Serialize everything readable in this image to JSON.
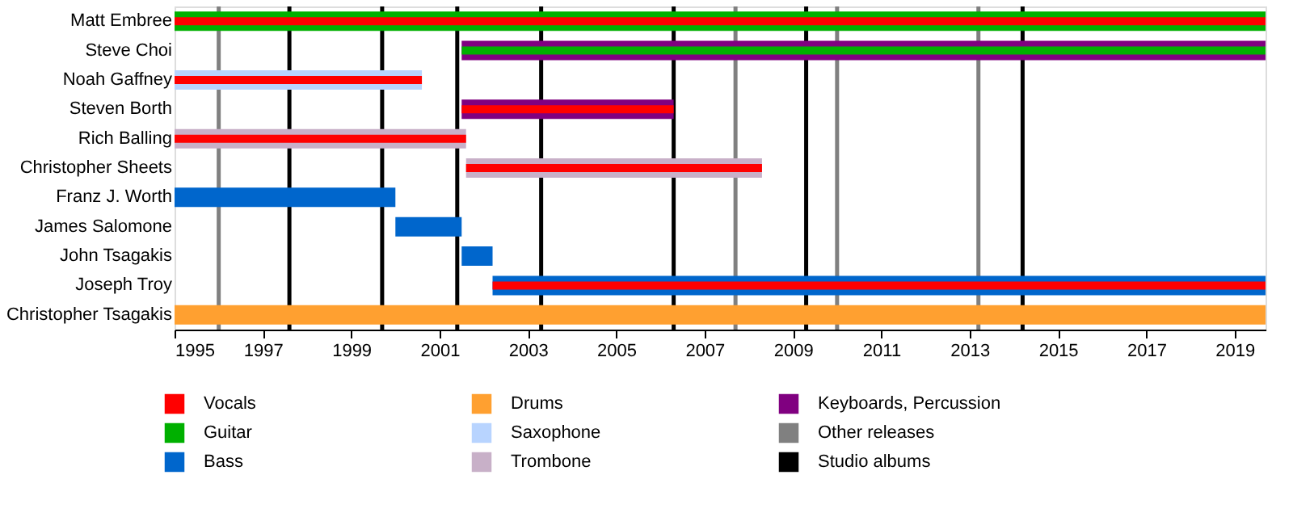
{
  "chart_data": {
    "type": "bar",
    "orientation": "horizontal",
    "categories": [
      "Matt Embree",
      "Steve Choi",
      "Noah Gaffney",
      "Steven Borth",
      "Rich Balling",
      "Christopher Sheets",
      "Franz J. Worth",
      "James Salomone",
      "John Tsagakis",
      "Joseph Troy",
      "Christopher Tsagakis"
    ],
    "series": [
      {
        "name": "Vocals",
        "color": "#ff0000",
        "base": [
          1995,
          null,
          1995,
          2001.5,
          1995,
          2001.6,
          null,
          null,
          null,
          2002.2,
          null
        ],
        "values": [
          24.7,
          null,
          5.6,
          4.8,
          6.6,
          6.7,
          null,
          null,
          null,
          17.5,
          null
        ]
      },
      {
        "name": "Guitar",
        "color": "#00b000",
        "base": [
          1995,
          2001.5,
          null,
          null,
          null,
          null,
          null,
          null,
          null,
          null,
          null
        ],
        "values": [
          24.7,
          18.2,
          null,
          null,
          null,
          null,
          null,
          null,
          null,
          null,
          null
        ]
      },
      {
        "name": "Bass",
        "color": "#0066cc",
        "base": [
          null,
          null,
          null,
          null,
          null,
          null,
          1995,
          2000.0,
          2001.5,
          2002.2,
          null
        ],
        "values": [
          null,
          null,
          null,
          null,
          null,
          null,
          5.0,
          1.5,
          0.7,
          17.5,
          null
        ]
      },
      {
        "name": "Drums",
        "color": "#ffa030",
        "base": [
          null,
          null,
          null,
          null,
          null,
          null,
          null,
          null,
          null,
          null,
          1995
        ],
        "values": [
          null,
          null,
          null,
          null,
          null,
          null,
          null,
          null,
          null,
          null,
          24.7
        ]
      },
      {
        "name": "Saxophone",
        "color": "#b8d4ff",
        "base": [
          null,
          null,
          1995,
          null,
          null,
          null,
          null,
          null,
          null,
          null,
          null
        ],
        "values": [
          null,
          null,
          5.6,
          null,
          null,
          null,
          null,
          null,
          null,
          null,
          null
        ]
      },
      {
        "name": "Trombone",
        "color": "#c8b0c8",
        "base": [
          null,
          null,
          null,
          null,
          1995,
          2001.6,
          null,
          null,
          null,
          null,
          null
        ],
        "values": [
          null,
          null,
          null,
          null,
          6.6,
          6.7,
          null,
          null,
          null,
          null,
          null
        ]
      },
      {
        "name": "Keyboards, Percussion",
        "color": "#800080",
        "base": [
          null,
          2001.5,
          null,
          2001.5,
          null,
          null,
          null,
          null,
          null,
          null,
          null
        ],
        "values": [
          null,
          18.2,
          null,
          4.8,
          null,
          null,
          null,
          null,
          null,
          null,
          null
        ]
      }
    ],
    "ref_lines": [
      {
        "axis": "x",
        "value": 1996.0,
        "label": "Other releases",
        "color": "#808080"
      },
      {
        "axis": "x",
        "value": 1997.6,
        "label": "Studio albums",
        "color": "#000000"
      },
      {
        "axis": "x",
        "value": 1999.7,
        "color": "#000000"
      },
      {
        "axis": "x",
        "value": 2001.4,
        "color": "#000000"
      },
      {
        "axis": "x",
        "value": 2003.3,
        "color": "#000000"
      },
      {
        "axis": "x",
        "value": 2006.3,
        "color": "#000000"
      },
      {
        "axis": "x",
        "value": 2007.7,
        "color": "#808080"
      },
      {
        "axis": "x",
        "value": 2009.3,
        "color": "#000000"
      },
      {
        "axis": "x",
        "value": 2010.0,
        "color": "#808080"
      },
      {
        "axis": "x",
        "value": 2013.2,
        "color": "#808080"
      },
      {
        "axis": "x",
        "value": 2014.2,
        "color": "#000000"
      }
    ],
    "xlim": [
      1995,
      2019.7
    ],
    "xticks": [
      1995,
      1997,
      1999,
      2001,
      2003,
      2005,
      2007,
      2009,
      2011,
      2013,
      2015,
      2017,
      2019
    ],
    "grid": false,
    "legend": "bottom"
  }
}
